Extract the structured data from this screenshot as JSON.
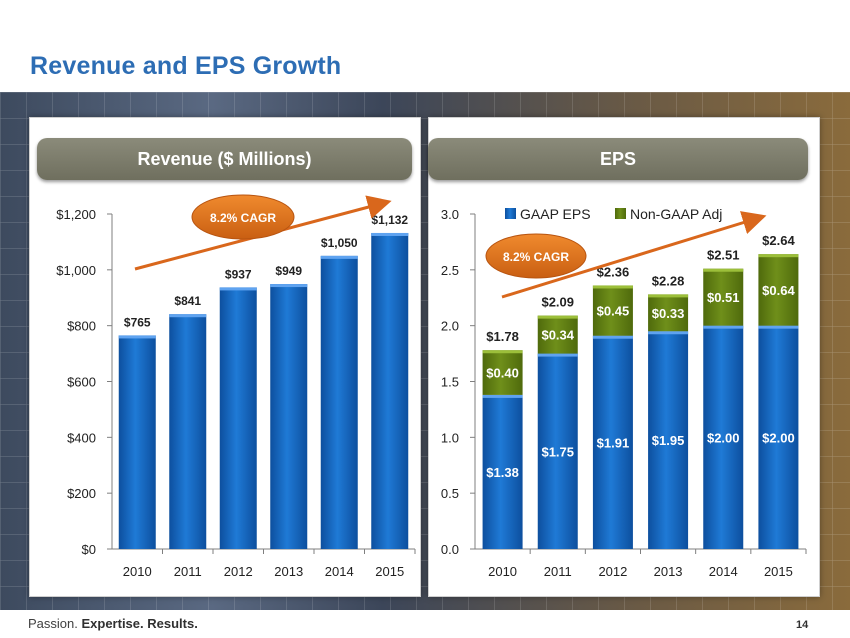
{
  "slide": {
    "title": "Revenue and EPS Growth",
    "footer_tagline_1": "Passion. ",
    "footer_tagline_2": "Expertise. ",
    "footer_tagline_3": "Results.",
    "page_number": "14"
  },
  "colors": {
    "title": "#2d6db4",
    "bar_blue": "#1565c0",
    "bar_green": "#5f7d12",
    "arrow": "#d9671c",
    "cagr_badge": "#e0731d"
  },
  "chart_data": [
    {
      "type": "bar",
      "title": "Revenue ($ Millions)",
      "categories": [
        "2010",
        "2011",
        "2012",
        "2013",
        "2014",
        "2015"
      ],
      "values": [
        765,
        841,
        937,
        949,
        1050,
        1132
      ],
      "labels": [
        "$765",
        "$841",
        "$937",
        "$949",
        "$1,050",
        "$1,132"
      ],
      "ylim": [
        0,
        1200
      ],
      "yticks": [
        0,
        200,
        400,
        600,
        800,
        1000,
        1200
      ],
      "ytick_labels": [
        "$0",
        "$200",
        "$400",
        "$600",
        "$800",
        "$1,000",
        "$1,200"
      ],
      "annotation": "8.2% CAGR",
      "grid": false
    },
    {
      "type": "bar",
      "stacked": true,
      "title": "EPS",
      "categories": [
        "2010",
        "2011",
        "2012",
        "2013",
        "2014",
        "2015"
      ],
      "series": [
        {
          "name": "GAAP EPS",
          "values": [
            1.38,
            1.75,
            1.91,
            1.95,
            2.0,
            2.0
          ],
          "labels": [
            "$1.38",
            "$1.75",
            "$1.91",
            "$1.95",
            "$2.00",
            "$2.00"
          ]
        },
        {
          "name": "Non-GAAP Adj",
          "values": [
            0.4,
            0.34,
            0.45,
            0.33,
            0.51,
            0.64
          ],
          "labels": [
            "$0.40",
            "$0.34",
            "$0.45",
            "$0.33",
            "$0.51",
            "$0.64"
          ]
        }
      ],
      "totals": [
        1.78,
        2.09,
        2.36,
        2.28,
        2.51,
        2.64
      ],
      "total_labels": [
        "$1.78",
        "$2.09",
        "$2.36",
        "$2.28",
        "$2.51",
        "$2.64"
      ],
      "ylim": [
        0,
        3.0
      ],
      "yticks": [
        0,
        0.5,
        1.0,
        1.5,
        2.0,
        2.5,
        3.0
      ],
      "ytick_labels": [
        "0.0",
        "0.5",
        "1.0",
        "1.5",
        "2.0",
        "2.5",
        "3.0"
      ],
      "legend_placement": "top",
      "annotation": "8.2% CAGR",
      "grid": false
    }
  ]
}
